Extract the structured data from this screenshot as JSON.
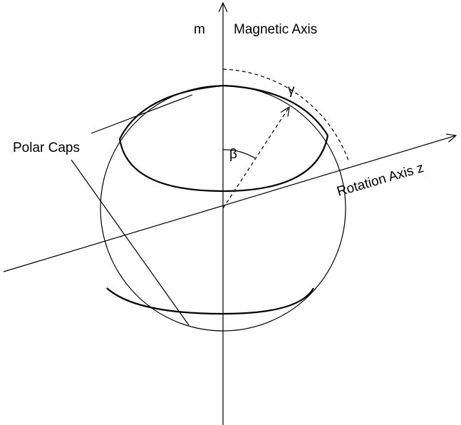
{
  "labels": {
    "m": "m",
    "magnetic_axis": "Magnetic Axis",
    "gamma": "γ",
    "beta": "β",
    "polar_caps": "Polar Caps",
    "rotation_axis": "Rotation Axis z"
  }
}
